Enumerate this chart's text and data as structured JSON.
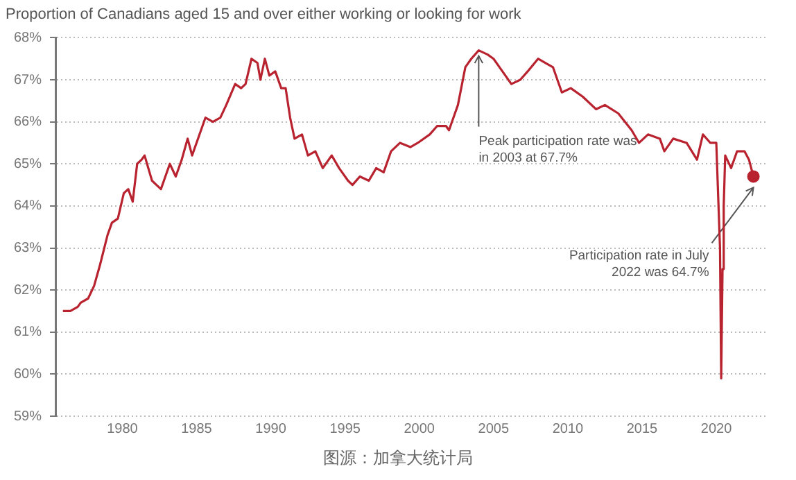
{
  "chart_data": {
    "type": "line",
    "title": "Proportion of Canadians aged 15 and over either working or looking for work",
    "series": [
      {
        "color": "#b8232f",
        "x": [
          1976.0,
          1976.5,
          1977.0,
          1977.2,
          1977.7,
          1978.1,
          1978.5,
          1979.0,
          1979.3,
          1979.7,
          1980.1,
          1980.4,
          1980.7,
          1981.0,
          1981.3,
          1981.5,
          1982.0,
          1982.3,
          1982.6,
          1983.2,
          1983.6,
          1984.0,
          1984.4,
          1984.7,
          1985.2,
          1985.6,
          1986.1,
          1986.6,
          1987.0,
          1987.6,
          1988.0,
          1988.3,
          1988.7,
          1989.1,
          1989.3,
          1989.6,
          1989.9,
          1990.3,
          1990.7,
          1991.0,
          1991.3,
          1991.6,
          1992.1,
          1992.5,
          1993.0,
          1993.5,
          1994.1,
          1994.6,
          1995.2,
          1995.5,
          1996.0,
          1996.6,
          1997.1,
          1997.6,
          1998.1,
          1998.7,
          1999.4,
          1999.9,
          2000.7,
          2001.2,
          2001.8,
          2002.0,
          2002.6,
          2003.1,
          2003.5,
          2004.0,
          2004.6,
          2005.0,
          2005.4,
          2006.2,
          2006.8,
          2007.3,
          2008.0,
          2008.5,
          2009.0,
          2009.6,
          2010.2,
          2011.0,
          2011.9,
          2012.5,
          2013.4,
          2014.3,
          2014.8,
          2015.4,
          2016.2,
          2016.5,
          2017.1,
          2018.0,
          2018.7,
          2019.1,
          2019.6,
          2020.0,
          2020.25,
          2020.33,
          2020.42,
          2020.5,
          2020.6,
          2021.0,
          2021.4,
          2021.9,
          2022.2,
          2022.5
        ],
        "values": [
          61.5,
          61.5,
          61.6,
          61.7,
          61.8,
          62.1,
          62.6,
          63.3,
          63.6,
          63.7,
          64.3,
          64.4,
          64.1,
          65.0,
          65.1,
          65.2,
          64.6,
          64.5,
          64.4,
          65.0,
          64.7,
          65.1,
          65.6,
          65.2,
          65.7,
          66.1,
          66.0,
          66.1,
          66.4,
          66.9,
          66.8,
          66.9,
          67.5,
          67.4,
          67.0,
          67.5,
          67.1,
          67.2,
          66.8,
          66.8,
          66.1,
          65.6,
          65.7,
          65.2,
          65.3,
          64.9,
          65.2,
          64.9,
          64.6,
          64.5,
          64.7,
          64.6,
          64.9,
          64.8,
          65.3,
          65.5,
          65.4,
          65.5,
          65.7,
          65.9,
          65.9,
          65.8,
          66.4,
          67.3,
          67.5,
          67.7,
          67.6,
          67.5,
          67.3,
          66.9,
          67.0,
          67.2,
          67.5,
          67.4,
          67.3,
          66.7,
          66.8,
          66.6,
          66.3,
          66.4,
          66.2,
          65.8,
          65.5,
          65.7,
          65.6,
          65.3,
          65.6,
          65.5,
          65.1,
          65.7,
          65.5,
          65.5,
          63.0,
          59.9,
          62.5,
          64.0,
          65.2,
          64.9,
          65.3,
          65.3,
          65.1,
          64.7
        ]
      },
      {
        "type": "scatter",
        "color": "#b8232f",
        "x": [
          2022.5
        ],
        "values": [
          64.7
        ]
      }
    ],
    "xlim": [
      1975.5,
      2023.5
    ],
    "xticks": [
      1980,
      1985,
      1990,
      1995,
      2000,
      2005,
      2010,
      2015,
      2020
    ],
    "ylim": [
      59,
      68
    ],
    "yticks": [
      {
        "value": 59,
        "label": "59%"
      },
      {
        "value": 60,
        "label": "60%"
      },
      {
        "value": 61,
        "label": "61%"
      },
      {
        "value": 62,
        "label": "62%"
      },
      {
        "value": 63,
        "label": "63%"
      },
      {
        "value": 64,
        "label": "64%"
      },
      {
        "value": 65,
        "label": "65%"
      },
      {
        "value": 66,
        "label": "66%"
      },
      {
        "value": 67,
        "label": "67%"
      },
      {
        "value": 68,
        "label": "68%"
      }
    ],
    "grid": "y",
    "legend": false,
    "annotations": [
      {
        "text": "Peak participation rate was in 2003 at 67.7%",
        "x": 2004.0,
        "y": 67.7
      },
      {
        "text": "Participation rate in July 2022 was 64.7%",
        "x": 2022.5,
        "y": 64.7
      },
      "图源：加拿大统计局"
    ]
  }
}
